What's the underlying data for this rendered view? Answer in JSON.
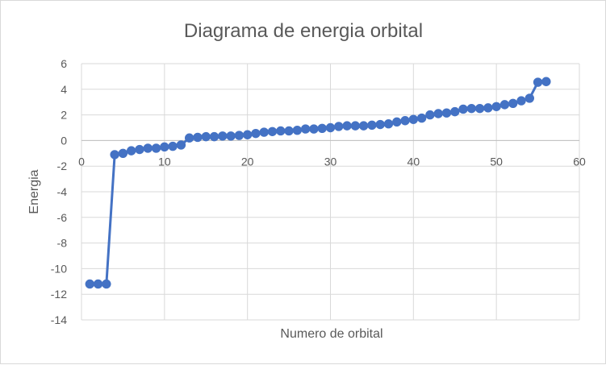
{
  "chart_data": {
    "type": "scatter",
    "title": "Diagrama de energia orbital",
    "xlabel": "Numero de orbital",
    "ylabel": "Energia",
    "xlim": [
      0,
      60
    ],
    "ylim": [
      -14,
      6
    ],
    "x_ticks": [
      "0",
      "10",
      "20",
      "30",
      "40",
      "50",
      "60"
    ],
    "y_ticks": [
      "6",
      "4",
      "2",
      "0",
      "-2",
      "-4",
      "-6",
      "-8",
      "-10",
      "-12",
      "-14"
    ],
    "x_tick_values": [
      0,
      10,
      20,
      30,
      40,
      50,
      60
    ],
    "y_tick_values": [
      6,
      4,
      2,
      0,
      -2,
      -4,
      -6,
      -8,
      -10,
      -12,
      -14
    ],
    "grid": true,
    "legend": "none",
    "series": [
      {
        "style": "line-with-markers",
        "color": "#4472c4",
        "x": [
          1,
          2,
          3,
          4,
          5,
          6,
          7,
          8,
          9,
          10,
          11,
          12,
          13,
          14,
          15,
          16,
          17,
          18,
          19,
          20,
          21,
          22,
          23,
          24,
          25,
          26,
          27,
          28,
          29,
          30,
          31,
          32,
          33,
          34,
          35,
          36,
          37,
          38,
          39,
          40,
          41,
          42,
          43,
          44,
          45,
          46,
          47,
          48,
          49,
          50,
          51,
          52,
          53,
          54,
          55,
          56
        ],
        "y": [
          -11.2,
          -11.2,
          -11.2,
          -1.1,
          -1.0,
          -0.8,
          -0.7,
          -0.6,
          -0.6,
          -0.5,
          -0.45,
          -0.35,
          0.2,
          0.25,
          0.3,
          0.3,
          0.35,
          0.35,
          0.4,
          0.45,
          0.55,
          0.65,
          0.7,
          0.75,
          0.75,
          0.8,
          0.9,
          0.9,
          0.95,
          1.0,
          1.1,
          1.15,
          1.15,
          1.15,
          1.2,
          1.25,
          1.3,
          1.45,
          1.55,
          1.65,
          1.75,
          2.0,
          2.1,
          2.15,
          2.25,
          2.45,
          2.5,
          2.5,
          2.55,
          2.65,
          2.8,
          2.9,
          3.1,
          3.3,
          4.55,
          4.6
        ]
      }
    ]
  }
}
